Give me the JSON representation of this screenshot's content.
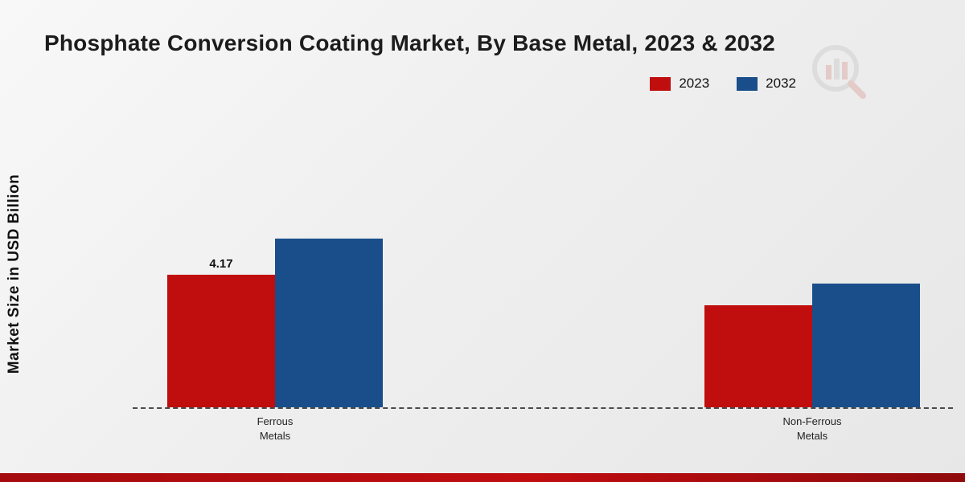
{
  "chart_data": {
    "type": "bar",
    "title": "Phosphate Conversion Coating Market, By Base Metal, 2023 & 2032",
    "ylabel": "Market Size in USD Billion",
    "xlabel": "",
    "categories": [
      "Ferrous\nMetals",
      "Non-Ferrous\nMetals"
    ],
    "series": [
      {
        "name": "2023",
        "color": "#c00d0d",
        "values": [
          4.17,
          3.2
        ],
        "labels": [
          "4.17",
          ""
        ]
      },
      {
        "name": "2032",
        "color": "#1a4e8a",
        "values": [
          5.3,
          3.9
        ],
        "labels": [
          "",
          ""
        ]
      }
    ],
    "ylim": [
      0,
      6
    ],
    "grid": false,
    "legend_position": "top-right",
    "baseline_style": "dashed"
  },
  "watermark": {
    "name": "market-research-logo",
    "accent_color": "#c00d0d",
    "gray_color": "#9a9a9a"
  },
  "footer": {
    "accent_color": "#b00c0f"
  }
}
